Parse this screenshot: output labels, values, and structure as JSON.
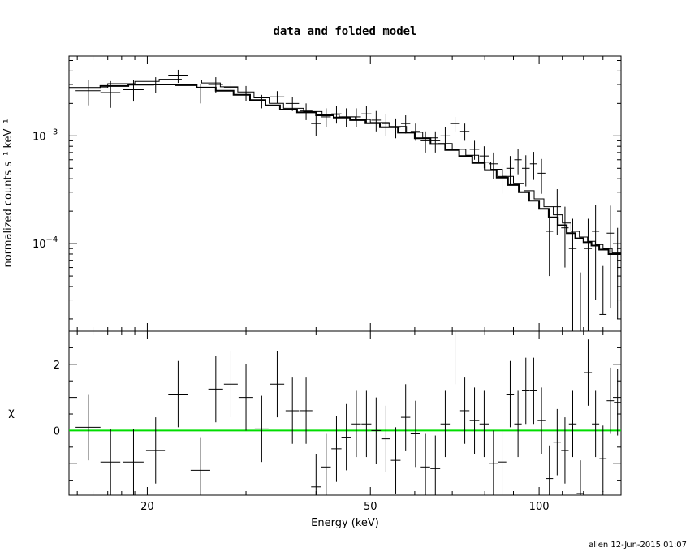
{
  "chart_data": [
    {
      "type": "scatter",
      "panel": "top",
      "title": "data and folded model",
      "xlabel": "",
      "ylabel": "normalized counts s⁻¹ keV⁻¹",
      "xscale": "log",
      "yscale": "log",
      "xlim": [
        14.5,
        140
      ],
      "ylim": [
        1.54e-05,
        0.0055
      ],
      "y_ticks_labeled": [
        {
          "value": 0.001,
          "base": "10",
          "exp": "−3"
        },
        {
          "value": 0.0001,
          "base": "10",
          "exp": "−4"
        }
      ],
      "data": {
        "name": "data",
        "x": [
          15.7,
          17.2,
          18.9,
          20.7,
          22.7,
          24.9,
          26.5,
          28.2,
          30.0,
          32.0,
          34.1,
          36.3,
          38.4,
          40.0,
          41.7,
          43.5,
          45.3,
          47.2,
          49.2,
          51.2,
          53.3,
          55.5,
          57.8,
          60.2,
          62.7,
          65.3,
          68.0,
          70.8,
          73.7,
          76.7,
          79.8,
          82.9,
          85.9,
          88.8,
          91.7,
          94.7,
          97.8,
          101.0,
          104.3,
          107.7,
          111.2,
          114.8,
          118.5,
          122.3,
          126.1,
          130.0,
          134.0,
          138.0
        ],
        "xerr": [
          0.8,
          0.7,
          0.8,
          0.8,
          0.9,
          1.0,
          0.8,
          0.8,
          0.9,
          0.9,
          1.0,
          1.0,
          1.0,
          0.8,
          0.8,
          0.9,
          0.9,
          0.9,
          1.0,
          1.0,
          1.0,
          1.1,
          1.1,
          1.2,
          1.2,
          1.3,
          1.3,
          1.4,
          1.4,
          1.5,
          1.5,
          1.5,
          1.5,
          1.4,
          1.4,
          1.5,
          1.5,
          1.6,
          1.6,
          1.7,
          1.7,
          1.8,
          1.8,
          1.9,
          1.9,
          1.9,
          2.0,
          2.0
        ],
        "y": [
          0.00262,
          0.00252,
          0.00268,
          0.003,
          0.0036,
          0.0025,
          0.003,
          0.0028,
          0.0025,
          0.0021,
          0.0023,
          0.002,
          0.0017,
          0.0013,
          0.0015,
          0.0016,
          0.0015,
          0.0015,
          0.0016,
          0.0014,
          0.0013,
          0.0012,
          0.0013,
          0.0011,
          0.0009,
          0.0009,
          0.001,
          0.0013,
          0.0011,
          0.00075,
          0.00065,
          0.00055,
          0.00042,
          0.0005,
          0.0006,
          0.0005,
          0.00055,
          0.00045,
          0.00013,
          0.00022,
          0.00014,
          9e-05,
          1.4e-05,
          9e-05,
          0.00013,
          2.2e-05,
          0.000125,
          8e-05
        ],
        "yerr_lo": [
          0.0007,
          0.0007,
          0.0006,
          0.0005,
          0.0005,
          0.0005,
          0.0005,
          0.0005,
          0.0004,
          0.0003,
          0.0003,
          0.0003,
          0.0003,
          0.0003,
          0.0003,
          0.0003,
          0.0003,
          0.0003,
          0.0003,
          0.0003,
          0.0003,
          0.00025,
          0.00025,
          0.0002,
          0.0002,
          0.0002,
          0.0002,
          0.0002,
          0.0002,
          0.00015,
          0.00015,
          0.00015,
          0.00013,
          0.00015,
          0.00016,
          0.00016,
          0.00016,
          0.00016,
          8e-05,
          0.0001,
          8e-05,
          8e-05,
          0.0,
          8e-05,
          0.0001,
          0.0,
          0.0001,
          6e-05
        ],
        "yerr_hi": [
          0.0007,
          0.0007,
          0.0006,
          0.0005,
          0.0005,
          0.0005,
          0.0005,
          0.0005,
          0.0004,
          0.0003,
          0.0003,
          0.0003,
          0.0003,
          0.0003,
          0.0003,
          0.0003,
          0.0003,
          0.0003,
          0.0003,
          0.0003,
          0.0003,
          0.00025,
          0.00025,
          0.0002,
          0.0002,
          0.0002,
          0.0002,
          0.0002,
          0.0002,
          0.00015,
          0.00015,
          0.00015,
          0.00013,
          0.00015,
          0.00016,
          0.00016,
          0.00016,
          0.00016,
          8e-05,
          0.0001,
          8e-05,
          8e-05,
          4e-05,
          8e-05,
          0.0001,
          4e-05,
          0.0001,
          6e-05
        ]
      },
      "models": [
        {
          "name": "model",
          "style": "thin",
          "edges": [
            14.5,
            17.0,
            19.0,
            21.0,
            23.0,
            25.0,
            27.0,
            29.0,
            31.0,
            33.0,
            35.0,
            38.0,
            41.0,
            44.0,
            47.0,
            50.0,
            54.0,
            58.0,
            62.0,
            66.0,
            70.0,
            74.0,
            78.0,
            82.0,
            86.0,
            90.0,
            94.0,
            98.0,
            102.0,
            106.0,
            110.0,
            114.0,
            118.0,
            122.0,
            126.0,
            130.0,
            135.0,
            140.0
          ],
          "values": [
            0.0028,
            0.00305,
            0.0032,
            0.00335,
            0.0033,
            0.0031,
            0.00285,
            0.00255,
            0.00225,
            0.002,
            0.0018,
            0.00168,
            0.00158,
            0.0015,
            0.00142,
            0.00133,
            0.00122,
            0.00108,
            0.00096,
            0.00085,
            0.00075,
            0.00066,
            0.00057,
            0.00049,
            0.00042,
            0.00036,
            0.00031,
            0.00026,
            0.00022,
            0.000185,
            0.000155,
            0.00013,
            0.000115,
            0.000105,
            9.8e-05,
            9e-05,
            8.2e-05
          ]
        },
        {
          "name": "folded model",
          "style": "thick",
          "edges": [
            14.5,
            16.5,
            18.5,
            20.5,
            22.5,
            24.5,
            26.5,
            28.5,
            30.5,
            32.5,
            34.5,
            37.0,
            40.0,
            43.0,
            46.0,
            49.0,
            52.0,
            56.0,
            60.0,
            64.0,
            68.0,
            72.0,
            76.0,
            80.0,
            84.0,
            88.0,
            92.0,
            96.0,
            100.0,
            104.0,
            108.0,
            112.0,
            116.0,
            120.0,
            124.0,
            128.0,
            133.0,
            140.0
          ],
          "values": [
            0.00278,
            0.0029,
            0.00298,
            0.003,
            0.00295,
            0.0028,
            0.00262,
            0.0024,
            0.00215,
            0.00192,
            0.00175,
            0.00165,
            0.00155,
            0.00148,
            0.0014,
            0.00131,
            0.0012,
            0.00107,
            0.00095,
            0.00084,
            0.00074,
            0.00065,
            0.00056,
            0.00048,
            0.00041,
            0.00035,
            0.0003,
            0.00025,
            0.00021,
            0.000175,
            0.000148,
            0.000125,
            0.000112,
            0.000103,
            9.6e-05,
            8.8e-05,
            8e-05
          ]
        }
      ]
    },
    {
      "type": "scatter",
      "panel": "bottom",
      "xlabel": "Energy (keV)",
      "ylabel": "χ",
      "xscale": "log",
      "xlim": [
        14.5,
        140
      ],
      "ylim": [
        -1.95,
        3.0
      ],
      "x_ticks_labeled": [
        20,
        50,
        100
      ],
      "y_ticks_labeled": [
        0,
        2
      ],
      "zero_line_color": "#00dd00",
      "data": {
        "x": [
          15.7,
          17.2,
          18.9,
          20.7,
          22.7,
          24.9,
          26.5,
          28.2,
          30.0,
          32.0,
          34.1,
          36.3,
          38.4,
          40.0,
          41.7,
          43.5,
          45.3,
          47.2,
          49.2,
          51.2,
          53.3,
          55.5,
          57.8,
          60.2,
          62.7,
          65.3,
          68.0,
          70.8,
          73.7,
          76.7,
          79.8,
          82.9,
          85.9,
          88.8,
          91.7,
          94.7,
          97.8,
          101.0,
          104.3,
          107.7,
          111.2,
          114.8,
          118.5,
          122.3,
          126.1,
          130.0,
          134.0,
          138.0
        ],
        "xerr": [
          0.8,
          0.7,
          0.8,
          0.8,
          0.9,
          1.0,
          0.8,
          0.8,
          0.9,
          0.9,
          1.0,
          1.0,
          1.0,
          0.8,
          0.8,
          0.9,
          0.9,
          0.9,
          1.0,
          1.0,
          1.0,
          1.1,
          1.1,
          1.2,
          1.2,
          1.3,
          1.3,
          1.4,
          1.4,
          1.5,
          1.5,
          1.5,
          1.5,
          1.4,
          1.4,
          1.5,
          1.5,
          1.6,
          1.6,
          1.7,
          1.7,
          1.8,
          1.8,
          1.9,
          1.9,
          1.9,
          2.0,
          2.0
        ],
        "y": [
          0.1,
          -0.95,
          -0.95,
          -0.6,
          1.1,
          -1.2,
          1.25,
          1.4,
          1.0,
          0.05,
          1.4,
          0.6,
          0.6,
          -1.7,
          -1.1,
          -0.55,
          -0.2,
          0.2,
          0.2,
          0.0,
          -0.25,
          -0.9,
          0.4,
          -0.1,
          -1.1,
          -1.15,
          0.2,
          2.4,
          0.6,
          0.3,
          0.2,
          -1.0,
          -0.95,
          1.1,
          0.2,
          1.2,
          1.2,
          0.3,
          -1.45,
          -0.35,
          -0.6,
          0.2,
          -1.9,
          1.75,
          0.2,
          -0.85,
          0.9,
          0.85
        ],
        "yerr": [
          1.0,
          1.0,
          1.0,
          1.0,
          1.0,
          1.0,
          1.0,
          1.0,
          1.0,
          1.0,
          1.0,
          1.0,
          1.0,
          1.0,
          1.0,
          1.0,
          1.0,
          1.0,
          1.0,
          1.0,
          1.0,
          1.0,
          1.0,
          1.0,
          1.0,
          1.0,
          1.0,
          1.0,
          1.0,
          1.0,
          1.0,
          1.0,
          1.0,
          1.0,
          1.0,
          1.0,
          1.0,
          1.0,
          1.0,
          1.0,
          1.0,
          1.0,
          1.0,
          1.0,
          1.0,
          1.0,
          1.0,
          1.0
        ]
      }
    }
  ],
  "footer": "allen 12-Jun-2015 01:07"
}
